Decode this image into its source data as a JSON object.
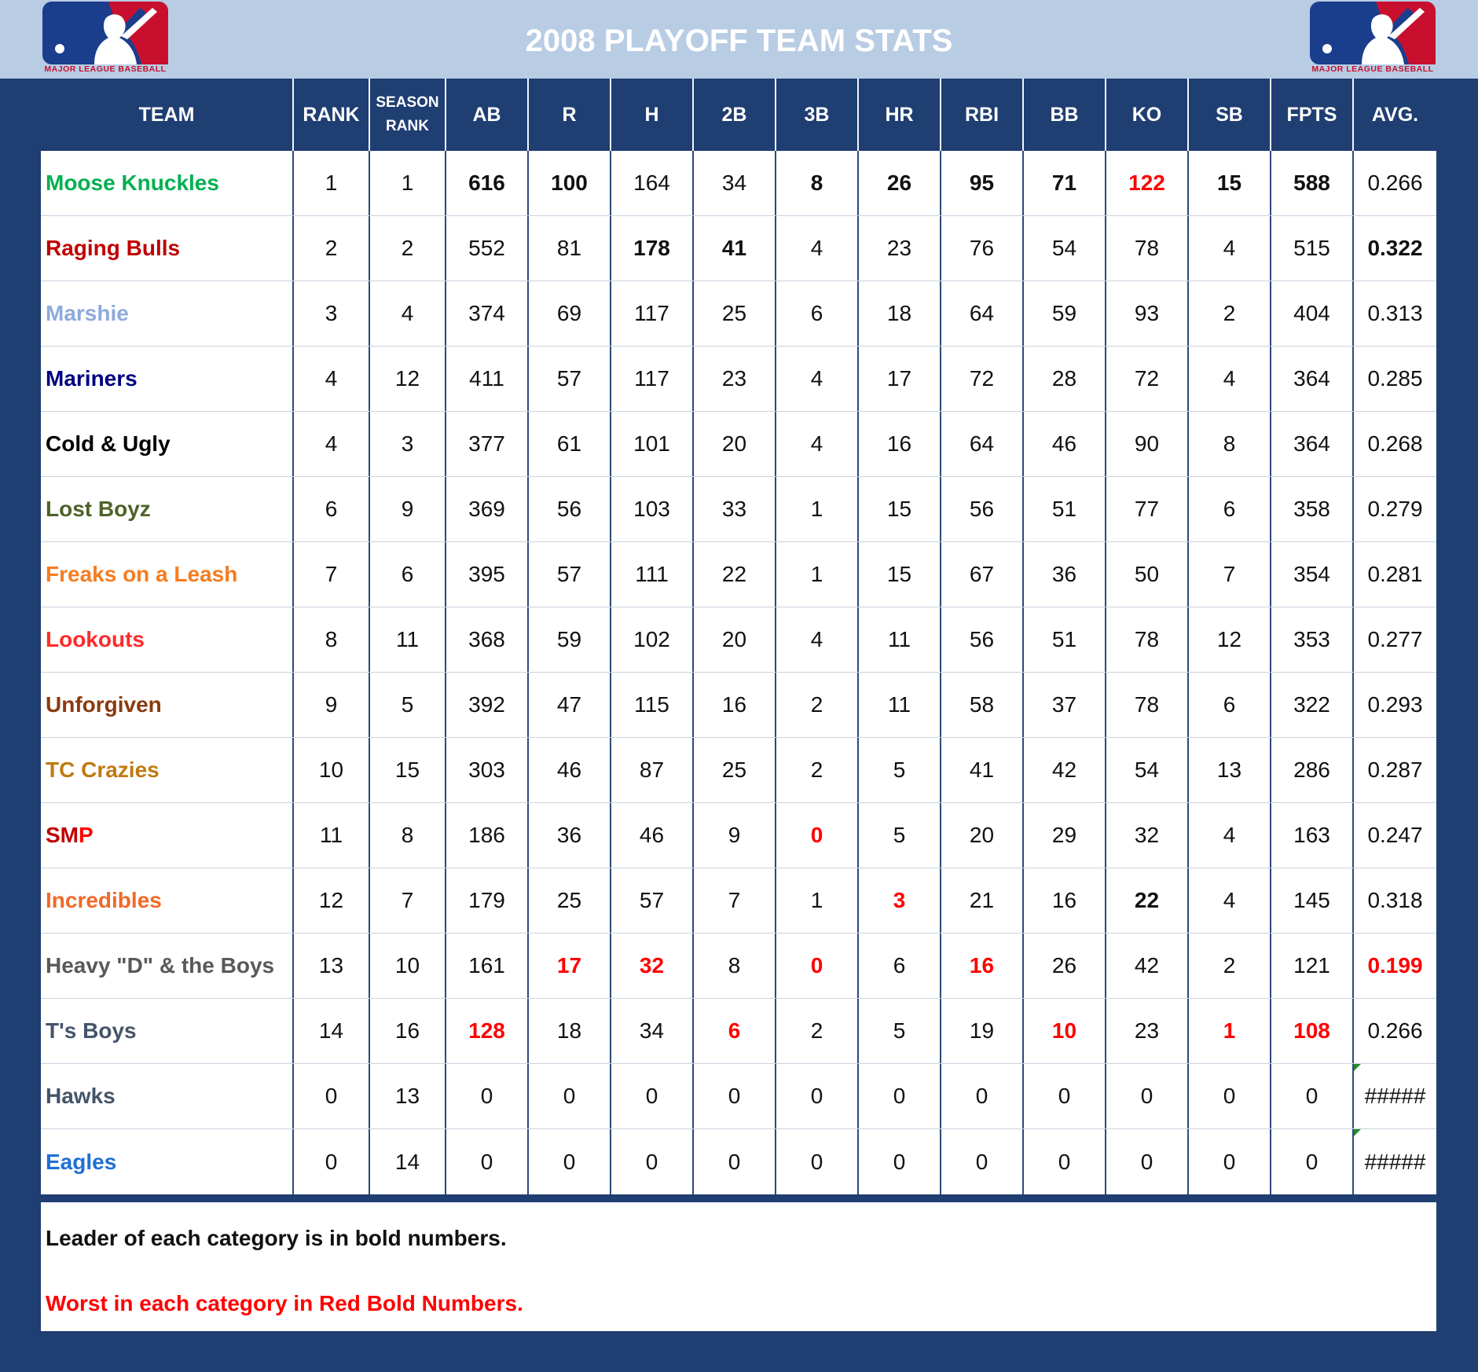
{
  "title": "2008 PLAYOFF TEAM STATS",
  "logo_text": "MAJOR LEAGUE BASEBALL",
  "columns": [
    "TEAM",
    "RANK",
    "SEASON RANK",
    "AB",
    "R",
    "H",
    "2B",
    "3B",
    "HR",
    "RBI",
    "BB",
    "KO",
    "SB",
    "FPTS",
    "AVG."
  ],
  "season_rank_lines": [
    "SEASON",
    "RANK"
  ],
  "rows": [
    {
      "team": "Moose Knuckles",
      "color": "#00b050",
      "values": [
        "1",
        "1",
        "616",
        "100",
        "164",
        "34",
        "8",
        "26",
        "95",
        "71",
        "122",
        "15",
        "588",
        "0.266"
      ],
      "bold": [
        2,
        3,
        6,
        7,
        8,
        9,
        11,
        12
      ],
      "worst": [
        10
      ]
    },
    {
      "team": "Raging Bulls",
      "color": "#c00000",
      "values": [
        "2",
        "2",
        "552",
        "81",
        "178",
        "41",
        "4",
        "23",
        "76",
        "54",
        "78",
        "4",
        "515",
        "0.322"
      ],
      "bold": [
        4,
        5,
        13
      ],
      "worst": []
    },
    {
      "team": "Marshie",
      "color": "#8eaadb",
      "values": [
        "3",
        "4",
        "374",
        "69",
        "117",
        "25",
        "6",
        "18",
        "64",
        "59",
        "93",
        "2",
        "404",
        "0.313"
      ],
      "bold": [],
      "worst": []
    },
    {
      "team": "Mariners",
      "color": "#000080",
      "values": [
        "4",
        "12",
        "411",
        "57",
        "117",
        "23",
        "4",
        "17",
        "72",
        "28",
        "72",
        "4",
        "364",
        "0.285"
      ],
      "bold": [],
      "worst": []
    },
    {
      "team": "Cold & Ugly",
      "color": "#000000",
      "values": [
        "4",
        "3",
        "377",
        "61",
        "101",
        "20",
        "4",
        "16",
        "64",
        "46",
        "90",
        "8",
        "364",
        "0.268"
      ],
      "bold": [],
      "worst": []
    },
    {
      "team": "Lost Boyz",
      "color": "#4f6228",
      "values": [
        "6",
        "9",
        "369",
        "56",
        "103",
        "33",
        "1",
        "15",
        "56",
        "51",
        "77",
        "6",
        "358",
        "0.279"
      ],
      "bold": [],
      "worst": []
    },
    {
      "team": "Freaks on a Leash",
      "color": "#f57c1f",
      "values": [
        "7",
        "6",
        "395",
        "57",
        "111",
        "22",
        "1",
        "15",
        "67",
        "36",
        "50",
        "7",
        "354",
        "0.281"
      ],
      "bold": [],
      "worst": []
    },
    {
      "team": "Lookouts",
      "color": "#ff2a2a",
      "values": [
        "8",
        "11",
        "368",
        "59",
        "102",
        "20",
        "4",
        "11",
        "56",
        "51",
        "78",
        "12",
        "353",
        "0.277"
      ],
      "bold": [],
      "worst": []
    },
    {
      "team": "Unforgiven",
      "color": "#8b3a0e",
      "values": [
        "9",
        "5",
        "392",
        "47",
        "115",
        "16",
        "2",
        "11",
        "58",
        "37",
        "78",
        "6",
        "322",
        "0.293"
      ],
      "bold": [],
      "worst": []
    },
    {
      "team": "TC Crazies",
      "color": "#c07a10",
      "values": [
        "10",
        "15",
        "303",
        "46",
        "87",
        "25",
        "2",
        "5",
        "41",
        "42",
        "54",
        "13",
        "286",
        "0.287"
      ],
      "bold": [],
      "worst": []
    },
    {
      "team": "SMP",
      "color": "#c00000",
      "values": [
        "11",
        "8",
        "186",
        "36",
        "46",
        "9",
        "0",
        "5",
        "20",
        "29",
        "32",
        "4",
        "163",
        "0.247"
      ],
      "bold": [],
      "worst": [
        6
      ]
    },
    {
      "team": "Incredibles",
      "color": "#f06a28",
      "values": [
        "12",
        "7",
        "179",
        "25",
        "57",
        "7",
        "1",
        "3",
        "21",
        "16",
        "22",
        "4",
        "145",
        "0.318"
      ],
      "bold": [
        10
      ],
      "worst": [
        7
      ]
    },
    {
      "team": "Heavy \"D\" & the Boys",
      "color": "#595959",
      "values": [
        "13",
        "10",
        "161",
        "17",
        "32",
        "8",
        "0",
        "6",
        "16",
        "26",
        "42",
        "2",
        "121",
        "0.199"
      ],
      "bold": [],
      "worst": [
        3,
        4,
        6,
        8,
        13
      ]
    },
    {
      "team": "T's Boys",
      "color": "#44546a",
      "values": [
        "14",
        "16",
        "128",
        "18",
        "34",
        "6",
        "2",
        "5",
        "19",
        "10",
        "23",
        "1",
        "108",
        "0.266"
      ],
      "bold": [],
      "worst": [
        2,
        5,
        9,
        11,
        12
      ]
    },
    {
      "team": "Hawks",
      "color": "#44546a",
      "values": [
        "0",
        "13",
        "0",
        "0",
        "0",
        "0",
        "0",
        "0",
        "0",
        "0",
        "0",
        "0",
        "0",
        "#####"
      ],
      "bold": [],
      "worst": [],
      "error_cell": 13
    },
    {
      "team": "Eagles",
      "color": "#1f6fd6",
      "values": [
        "0",
        "14",
        "0",
        "0",
        "0",
        "0",
        "0",
        "0",
        "0",
        "0",
        "0",
        "0",
        "0",
        "#####"
      ],
      "bold": [],
      "worst": [],
      "error_cell": 13
    }
  ],
  "notes": {
    "leader": "Leader of each category is in bold numbers.",
    "worst": "Worst in each category in Red Bold Numbers."
  },
  "colors": {
    "navy": "#1f3e72",
    "header_band": "#b8cce4",
    "worst_red": "#ff0000",
    "logo_blue": "#1a3e8c",
    "logo_red": "#c8102e"
  },
  "icons": [
    "mlb-logo-icon"
  ]
}
